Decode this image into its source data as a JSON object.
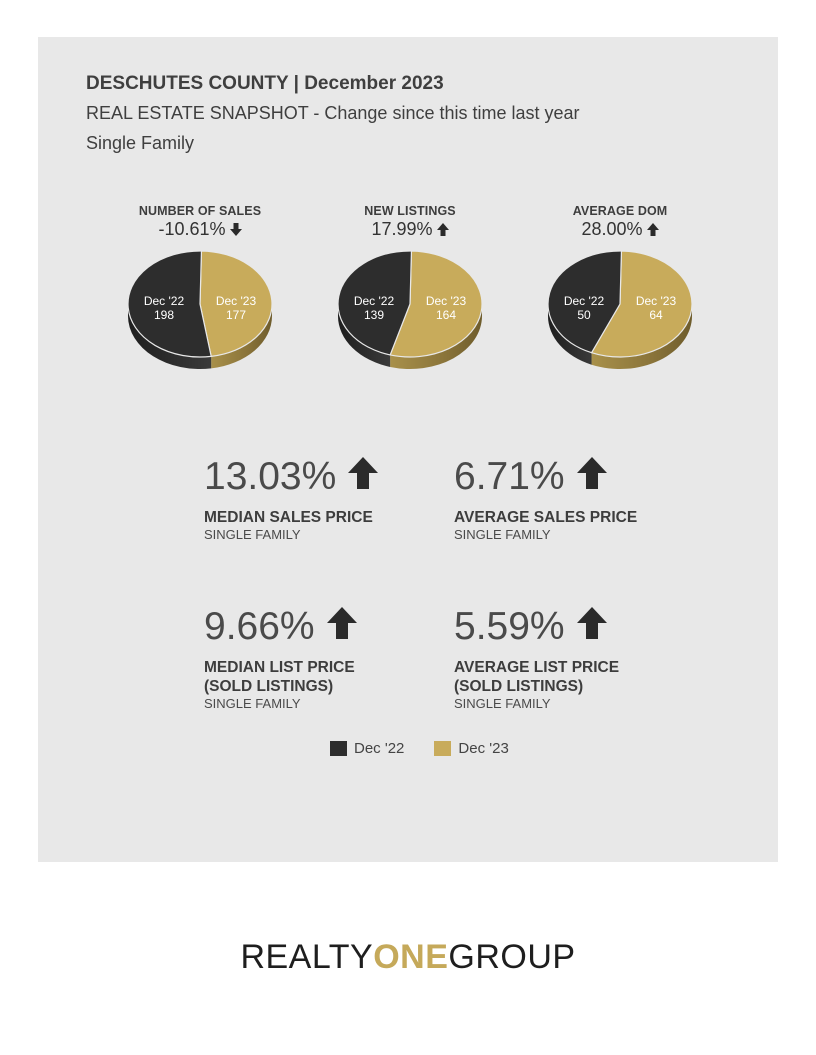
{
  "header": {
    "title": "DESCHUTES COUNTY | December 2023",
    "subtitle_main": "REAL ESTATE SNAPSHOT",
    "subtitle_change": " - Change since this time last year",
    "category": "Single Family"
  },
  "colors": {
    "dec22": "#2d2d2d",
    "dec23": "#c8ab5b",
    "background": "#e8e8e8"
  },
  "chart_data": [
    {
      "type": "pie",
      "title": "NUMBER OF SALES",
      "change": "-10.61%",
      "direction": "down",
      "categories": [
        "Dec '22",
        "Dec '23"
      ],
      "values": [
        198,
        177
      ],
      "value_labels": [
        "198",
        "177"
      ]
    },
    {
      "type": "pie",
      "title": "NEW LISTINGS",
      "change": "17.99%",
      "direction": "up",
      "categories": [
        "Dec '22",
        "Dec '23"
      ],
      "values": [
        139,
        164
      ],
      "value_labels": [
        "139",
        "164"
      ]
    },
    {
      "type": "pie",
      "title": "AVERAGE DOM",
      "change": "28.00%",
      "direction": "up",
      "categories": [
        "Dec '22",
        "Dec '23"
      ],
      "values": [
        50,
        64
      ],
      "value_labels": [
        "50",
        "64"
      ]
    }
  ],
  "stats": [
    {
      "value": "13.03%",
      "direction": "up",
      "label_lines": [
        "MEDIAN SALES PRICE"
      ],
      "sub": "SINGLE FAMILY"
    },
    {
      "value": "6.71%",
      "direction": "up",
      "label_lines": [
        "AVERAGE SALES PRICE"
      ],
      "sub": "SINGLE FAMILY"
    },
    {
      "value": "9.66%",
      "direction": "up",
      "label_lines": [
        "MEDIAN LIST PRICE",
        "(SOLD LISTINGS)"
      ],
      "sub": "SINGLE FAMILY"
    },
    {
      "value": "5.59%",
      "direction": "up",
      "label_lines": [
        "AVERAGE LIST PRICE",
        "(SOLD LISTINGS)"
      ],
      "sub": "SINGLE FAMILY"
    }
  ],
  "legend": [
    {
      "label": "Dec '22",
      "color": "#2d2d2d"
    },
    {
      "label": "Dec '23",
      "color": "#c8ab5b"
    }
  ],
  "brand": {
    "part1": "REALTY",
    "part2": "ONE",
    "part3": "GROUP"
  }
}
